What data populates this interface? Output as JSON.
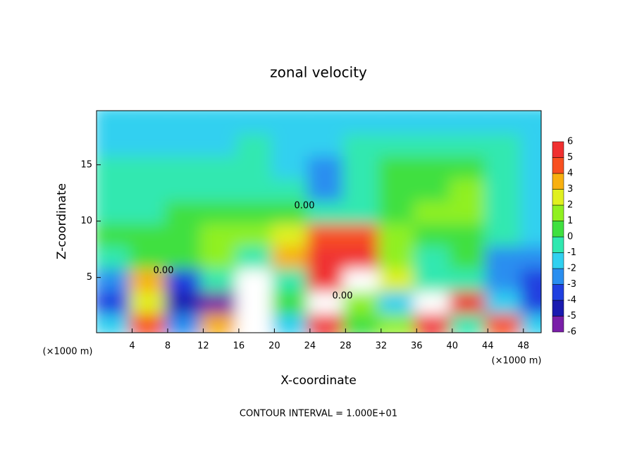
{
  "chart_data": {
    "type": "heatmap",
    "title": "zonal velocity",
    "x_label": "X-coordinate",
    "y_label": "Z-coordinate",
    "x_unit": "(×1000 m)",
    "y_unit": "(×1000 m)",
    "footer": "CONTOUR INTERVAL = 1.000E+01",
    "annotations": [
      "0.00",
      "0.00",
      "0.00"
    ],
    "x": [
      2,
      6,
      10,
      14,
      18,
      22,
      26,
      30,
      34,
      38,
      42,
      46,
      50
    ],
    "y": [
      1,
      3,
      5,
      7,
      9,
      11,
      13,
      15,
      17,
      19
    ],
    "z": [
      [
        -1,
        5,
        -2,
        4,
        7,
        -1,
        6,
        1,
        2,
        6,
        0,
        5,
        -1
      ],
      [
        -3,
        3,
        -4,
        -5,
        8,
        0.5,
        8,
        2,
        -1,
        8,
        6,
        -1,
        -3
      ],
      [
        -2,
        4,
        -3,
        0,
        7,
        0,
        6,
        7,
        3,
        0,
        0,
        -2,
        -3
      ],
      [
        -0.5,
        0.5,
        1,
        2,
        0,
        4,
        5.5,
        6,
        2,
        0,
        0.5,
        -2,
        -2
      ],
      [
        1,
        0.5,
        1,
        1.5,
        2,
        3,
        5,
        5,
        2,
        0.5,
        1,
        0,
        -1.5
      ],
      [
        -0.5,
        0,
        0.5,
        0.5,
        1,
        0.5,
        0,
        0,
        1,
        1.5,
        2,
        0,
        -1
      ],
      [
        -0.5,
        -0.5,
        0,
        0,
        0,
        -0.5,
        -2,
        -0.5,
        1,
        1,
        1.5,
        -0.5,
        -1.5
      ],
      [
        -0.5,
        -0.5,
        -0.5,
        -0.5,
        -0.5,
        -1,
        -2,
        -0.5,
        0.5,
        0.5,
        0.5,
        -0.5,
        -1.5
      ],
      [
        -1,
        -1,
        -1,
        -1,
        -0.5,
        -1,
        -1,
        -0.5,
        0,
        0,
        0,
        -0.5,
        -1
      ],
      [
        -1.5,
        -1.5,
        -1.5,
        -1.5,
        -1.5,
        -1.5,
        -1.5,
        -1.5,
        -1.5,
        -1.5,
        -1.5,
        -1.5,
        -1.5
      ]
    ],
    "xlim": [
      0,
      50
    ],
    "ylim": [
      0.1,
      19.8
    ],
    "xticks": [
      4,
      8,
      12,
      16,
      20,
      24,
      28,
      32,
      36,
      40,
      44,
      48
    ],
    "yticks": [
      5,
      10,
      15
    ],
    "colorbar": {
      "levels": [
        -6,
        -5,
        -4,
        -3,
        -2,
        -1,
        0,
        1,
        2,
        3,
        4,
        5,
        6
      ],
      "colors": [
        "#7a1fa8",
        "#1a1ab0",
        "#2040e0",
        "#2a8ef0",
        "#30d0f0",
        "#30e8b0",
        "#40e040",
        "#90f020",
        "#e0f020",
        "#f8b010",
        "#f85020",
        "#f03030",
        "#f08888"
      ],
      "over_color": "#ffffff"
    }
  }
}
